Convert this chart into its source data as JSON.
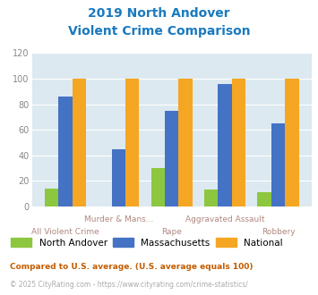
{
  "title_line1": "2019 North Andover",
  "title_line2": "Violent Crime Comparison",
  "categories": [
    "All Violent Crime",
    "Murder & Mans...",
    "Rape",
    "Aggravated Assault",
    "Robbery"
  ],
  "north_andover": [
    14,
    0,
    30,
    13,
    11
  ],
  "massachusetts": [
    86,
    45,
    75,
    96,
    65
  ],
  "national": [
    100,
    100,
    100,
    100,
    100
  ],
  "color_na": "#8dc63f",
  "color_ma": "#4472c4",
  "color_nat": "#f5a623",
  "ylim": [
    0,
    120
  ],
  "yticks": [
    0,
    20,
    40,
    60,
    80,
    100,
    120
  ],
  "bg_color": "#dce9f0",
  "legend_labels": [
    "North Andover",
    "Massachusetts",
    "National"
  ],
  "footnote1": "Compared to U.S. average. (U.S. average equals 100)",
  "footnote2": "© 2025 CityRating.com - https://www.cityrating.com/crime-statistics/",
  "title_color": "#1a7abf",
  "footnote1_color": "#c45c00",
  "footnote2_color": "#aaaaaa",
  "xlabel_color": "#b08880"
}
